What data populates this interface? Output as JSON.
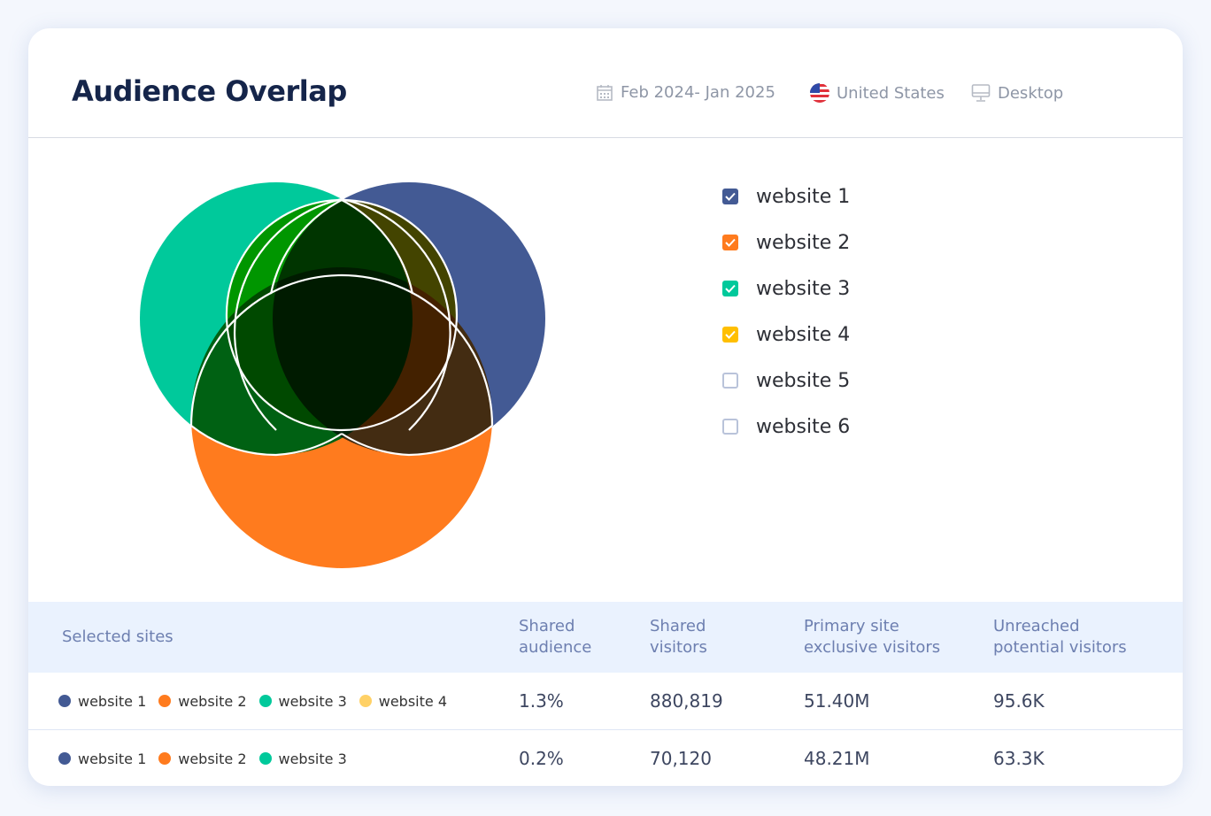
{
  "header": {
    "title": "Audience Overlap",
    "date_range": "Feb 2024- Jan 2025",
    "country": "United States",
    "device": "Desktop",
    "icons": [
      "calendar-icon",
      "us-flag-icon",
      "desktop-icon"
    ]
  },
  "websites": [
    {
      "label": "website 1",
      "checked": true,
      "color": "#435a94"
    },
    {
      "label": "website 2",
      "checked": true,
      "color": "#ff7b1e"
    },
    {
      "label": "website 3",
      "checked": true,
      "color": "#00c99b"
    },
    {
      "label": "website 4",
      "checked": true,
      "color": "#ffbf00"
    },
    {
      "label": "website 5",
      "checked": false,
      "color": "#b9c3da"
    },
    {
      "label": "website 6",
      "checked": false,
      "color": "#b9c3da"
    }
  ],
  "table": {
    "headers": {
      "sites": "Selected sites",
      "shared_audience": [
        "Shared",
        "audience"
      ],
      "shared_visitors": [
        "Shared",
        "visitors"
      ],
      "primary_exclusive": [
        "Primary site",
        "exclusive visitors"
      ],
      "unreached": [
        "Unreached",
        "potential visitors"
      ]
    },
    "dot_colors": {
      "website 1": "#435a94",
      "website 2": "#ff7b1e",
      "website 3": "#00c99b",
      "website 4": "#ffd166"
    },
    "rows": [
      {
        "sites": [
          "website 1",
          "website 2",
          "website 3",
          "website 4"
        ],
        "shared_audience": "1.3%",
        "shared_visitors": "880,819",
        "primary_exclusive": "51.40M",
        "unreached": "95.6K"
      },
      {
        "sites": [
          "website 1",
          "website 2",
          "website 3"
        ],
        "shared_audience": "0.2%",
        "shared_visitors": "70,120",
        "primary_exclusive": "48.21M",
        "unreached": "63.3K"
      }
    ]
  }
}
